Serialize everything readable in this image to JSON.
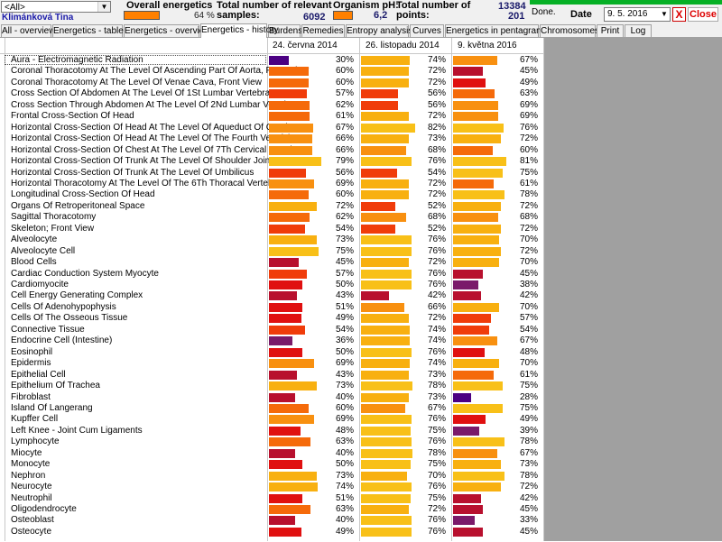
{
  "filter": {
    "value": "<All>"
  },
  "user": "Klimánková Tina",
  "overall": {
    "label": "Overall energetics",
    "value": "64 %"
  },
  "samples": {
    "label_line1": "Total number of relevant",
    "label_line2": "samples:",
    "value": "6092"
  },
  "ph": {
    "label": "Organism pH:",
    "value": "6,2"
  },
  "points": {
    "label_line1": "Total number of",
    "label_line2": "points:",
    "value1": "13384",
    "value2": "201"
  },
  "status": "Done.",
  "date": {
    "label": "Date",
    "value": "9. 5. 2016"
  },
  "buttons": {
    "x": "X",
    "close": "Close"
  },
  "tabs": [
    "All - overview",
    "Energetics - table",
    "Energetics - overview",
    "Energetics - history",
    "Burdens",
    "Remedies",
    "Entropy analysis",
    "Curves",
    "Energetics in pentagram",
    "Chromosomes",
    "Print",
    "Log"
  ],
  "active_tab": 3,
  "columns": [
    "24. června 2014",
    "26. listopadu 2014",
    "9. května 2016"
  ],
  "colors": {
    "deep_purple": "#4b0082",
    "purple": "#7a1a6a",
    "crimson": "#b8102e",
    "red": "#e01010",
    "red_orange": "#f03c0a",
    "orange_red": "#f56a0a",
    "orange": "#f89010",
    "gold": "#f8b010",
    "yellow": "#f8c018"
  },
  "rows": [
    {
      "name": "Aura - Electromagnetic Radiation",
      "v": [
        30,
        74,
        67
      ]
    },
    {
      "name": "Coronal Thoracotomy At The Level Of Ascending Part Of Aorta, Front View",
      "v": [
        60,
        72,
        45
      ]
    },
    {
      "name": "Coronal Thoracotomy At The Level Of Venae Cava, Front View",
      "v": [
        60,
        72,
        49
      ]
    },
    {
      "name": "Cross Section Of Abdomen At The Level Of 1St Lumbar Vertebra",
      "v": [
        57,
        56,
        63
      ]
    },
    {
      "name": "Cross Section Through Abdomen At The Level Of 2Nd Lumbar Vertebra",
      "v": [
        62,
        56,
        69
      ]
    },
    {
      "name": "Frontal Cross-Section Of Head",
      "v": [
        61,
        72,
        69
      ]
    },
    {
      "name": "Horizontal Cross-Section Of Head At The Level Of Aqueduct Of Cerebrum",
      "v": [
        67,
        82,
        76
      ]
    },
    {
      "name": "Horizontal Cross-Section Of Head At The Level Of The Fourth Ventricle",
      "v": [
        66,
        73,
        72
      ]
    },
    {
      "name": "Horizontal Cross-Section Of Chest At The Level Of 7Th Cervical Vertebra",
      "v": [
        66,
        68,
        60
      ]
    },
    {
      "name": "Horizontal Cross-Section Of Trunk At The Level Of Shoulder Joints",
      "v": [
        79,
        76,
        81
      ]
    },
    {
      "name": "Horizontal Cross-Section Of Trunk At The Level Of Umbilicus",
      "v": [
        56,
        54,
        75
      ]
    },
    {
      "name": "Horizontal Thoracotomy At The Level Of The 6Th Thoracal Vertebra",
      "v": [
        69,
        72,
        61
      ]
    },
    {
      "name": "Longitudinal Cross-Section Of Head",
      "v": [
        60,
        72,
        78
      ]
    },
    {
      "name": "Organs Of Retroperitoneal Space",
      "v": [
        72,
        52,
        72
      ]
    },
    {
      "name": "Sagittal Thoracotomy",
      "v": [
        62,
        68,
        68
      ]
    },
    {
      "name": "Skeleton; Front View",
      "v": [
        54,
        52,
        72
      ]
    },
    {
      "name": "Alveolocyte",
      "v": [
        73,
        76,
        70
      ]
    },
    {
      "name": "Alveolocyte Cell",
      "v": [
        75,
        76,
        72
      ]
    },
    {
      "name": "Blood Cells",
      "v": [
        45,
        72,
        70
      ]
    },
    {
      "name": "Cardiac Conduction System Myocyte",
      "v": [
        57,
        76,
        45
      ]
    },
    {
      "name": "Cardiomyocite",
      "v": [
        50,
        76,
        38
      ]
    },
    {
      "name": "Cell Energy Generating Complex",
      "v": [
        43,
        42,
        42
      ]
    },
    {
      "name": "Cells Of Adenohypophysis",
      "v": [
        51,
        66,
        70
      ]
    },
    {
      "name": "Cells Of The Osseous Tissue",
      "v": [
        49,
        72,
        57
      ]
    },
    {
      "name": "Connective Tissue",
      "v": [
        54,
        74,
        54
      ]
    },
    {
      "name": "Endocrine Cell (Intestine)",
      "v": [
        36,
        74,
        67
      ]
    },
    {
      "name": "Eosinophil",
      "v": [
        50,
        76,
        48
      ]
    },
    {
      "name": "Epidermis",
      "v": [
        69,
        74,
        70
      ]
    },
    {
      "name": "Epithelial Cell",
      "v": [
        43,
        73,
        61
      ]
    },
    {
      "name": "Epithelium Of Trachea",
      "v": [
        73,
        78,
        75
      ]
    },
    {
      "name": "Fibroblast",
      "v": [
        40,
        73,
        28
      ]
    },
    {
      "name": "Island Of Langerang",
      "v": [
        60,
        67,
        75
      ]
    },
    {
      "name": "Kupffer Cell",
      "v": [
        69,
        76,
        49
      ]
    },
    {
      "name": "Left Knee - Joint Cum Ligaments",
      "v": [
        48,
        75,
        39
      ]
    },
    {
      "name": "Lymphocyte",
      "v": [
        63,
        76,
        78
      ]
    },
    {
      "name": "Miocyte",
      "v": [
        40,
        78,
        67
      ]
    },
    {
      "name": "Monocyte",
      "v": [
        50,
        75,
        73
      ]
    },
    {
      "name": "Nephron",
      "v": [
        73,
        70,
        78
      ]
    },
    {
      "name": "Neurocyte",
      "v": [
        74,
        76,
        72
      ]
    },
    {
      "name": "Neutrophil",
      "v": [
        51,
        75,
        42
      ]
    },
    {
      "name": "Oligodendrocyte",
      "v": [
        63,
        72,
        45
      ]
    },
    {
      "name": "Osteoblast",
      "v": [
        40,
        76,
        33
      ]
    },
    {
      "name": "Osteocyte",
      "v": [
        49,
        76,
        45
      ]
    }
  ]
}
